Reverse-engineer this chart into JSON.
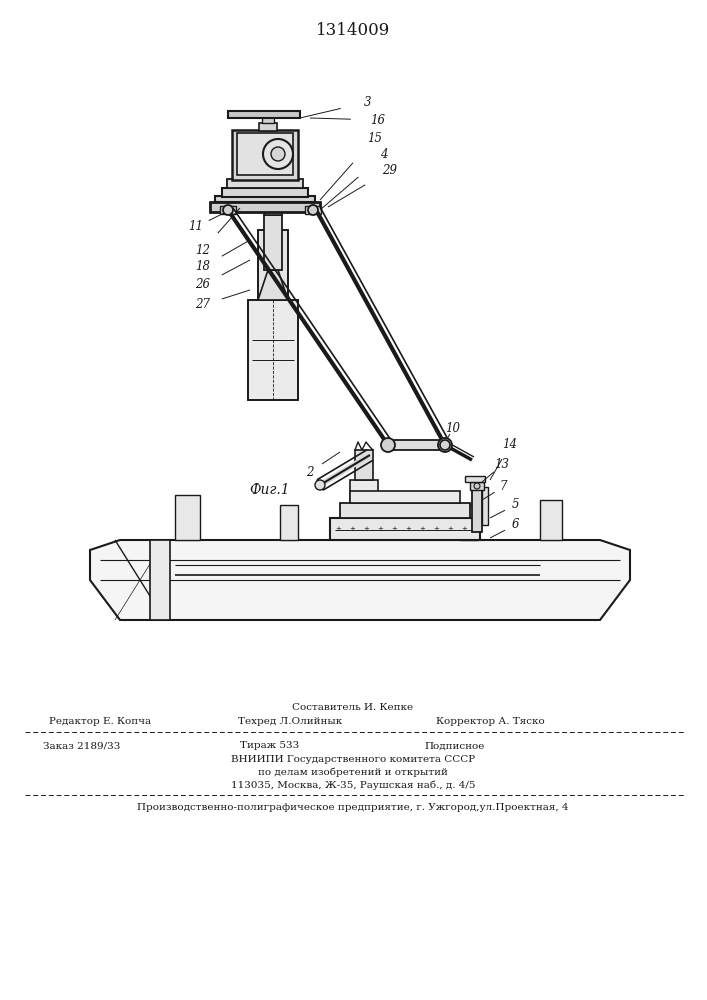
{
  "patent_number": "1314009",
  "fig_label": "Фиг.1",
  "bg_color": "#ffffff",
  "line_color": "#1a1a1a",
  "text_color": "#1a1a1a",
  "footer_line0_center": "Составитель И. Кепке",
  "footer_line1_left": "Редактор Е. Копча",
  "footer_line1_center": "Техред Л.Олийнык",
  "footer_line1_right": "Корректор А. Тяско",
  "footer_line2_left": "Заказ 2189/33",
  "footer_line2_center": "Тираж 533",
  "footer_line2_right": "Подписное",
  "footer_line3": "ВНИИПИ Государственного комитета СССР",
  "footer_line4": "по делам изобретений и открытий",
  "footer_line5": "113035, Москва, Ж-35, Раушская наб., д. 4/5",
  "footer_line6": "Производственно-полиграфическое предприятие, г. Ужгород,ул.Проектная, 4"
}
